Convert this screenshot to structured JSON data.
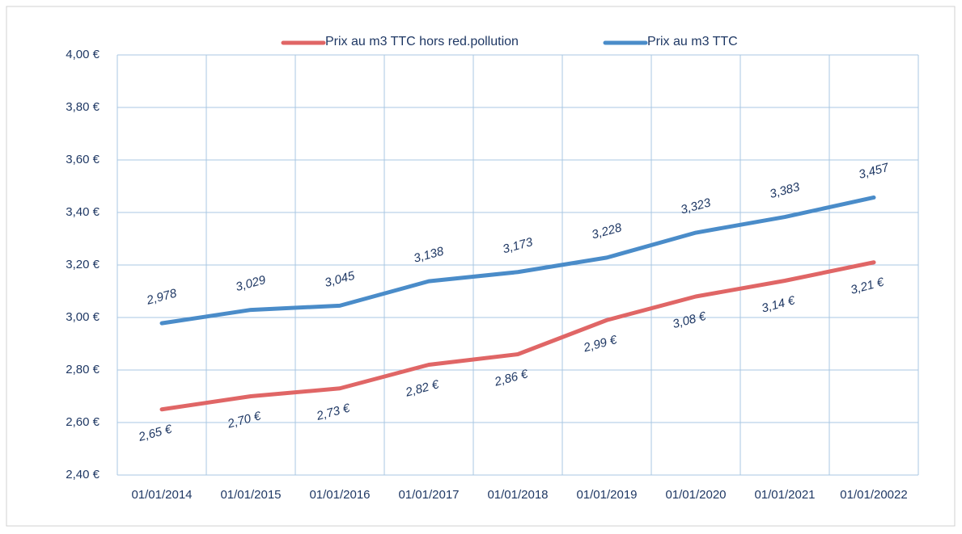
{
  "chart_data": {
    "type": "line",
    "categories": [
      "01/01/2014",
      "01/01/2015",
      "01/01/2016",
      "01/01/2017",
      "01/01/2018",
      "01/01/2019",
      "01/01/2020",
      "01/01/2021",
      "01/01/20022"
    ],
    "series": [
      {
        "name": "Prix au m3 TTC hors red.pollution",
        "color": "#e06666",
        "values": [
          2.65,
          2.7,
          2.73,
          2.82,
          2.86,
          2.99,
          3.08,
          3.14,
          3.21
        ],
        "value_labels": [
          "2,65 €",
          "2,70 €",
          "2,73 €",
          "2,82 €",
          "2,86 €",
          "2,99 €",
          "3,08 €",
          "3,14 €",
          "3,21 €"
        ]
      },
      {
        "name": "Prix au m3 TTC",
        "color": "#4a8cc9",
        "values": [
          2.978,
          3.029,
          3.045,
          3.138,
          3.173,
          3.228,
          3.323,
          3.383,
          3.457
        ],
        "value_labels": [
          "2,978",
          "3,029",
          "3,045",
          "3,138",
          "3,173",
          "3,228",
          "3,323",
          "3,383",
          "3,457"
        ]
      }
    ],
    "ylim": [
      2.4,
      4.0
    ],
    "yticks": [
      {
        "value": 2.4,
        "label": "2,40 €"
      },
      {
        "value": 2.6,
        "label": "2,60 €"
      },
      {
        "value": 2.8,
        "label": "2,80 €"
      },
      {
        "value": 3.0,
        "label": "3,00 €"
      },
      {
        "value": 3.2,
        "label": "3,20 €"
      },
      {
        "value": 3.4,
        "label": "3,40 €"
      },
      {
        "value": 3.6,
        "label": "3,60 €"
      },
      {
        "value": 3.8,
        "label": "3,80 €"
      },
      {
        "value": 4.0,
        "label": "4,00 €"
      }
    ],
    "grid": true,
    "legend": "top"
  }
}
